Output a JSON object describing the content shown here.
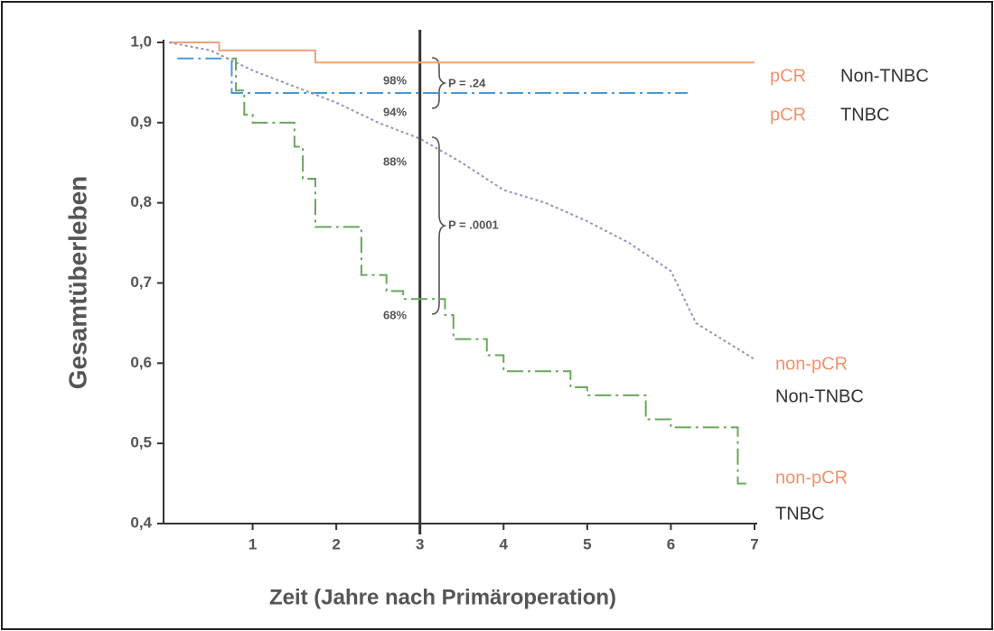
{
  "chart_data": {
    "type": "line",
    "step": true,
    "xlabel": "Zeit (Jahre nach Primäroperation)",
    "ylabel": "Gesamtüberleben",
    "xlim": [
      0,
      7
    ],
    "ylim": [
      0.4,
      1.0
    ],
    "xticks": [
      1,
      2,
      3,
      4,
      5,
      6,
      7
    ],
    "yticks": [
      {
        "value": 0.4,
        "label": "0,4"
      },
      {
        "value": 0.5,
        "label": "0,5"
      },
      {
        "value": 0.6,
        "label": "0,6"
      },
      {
        "value": 0.7,
        "label": "0,7"
      },
      {
        "value": 0.8,
        "label": "0,8"
      },
      {
        "value": 0.9,
        "label": "0,9"
      },
      {
        "value": 1.0,
        "label": "1,0"
      }
    ],
    "vline": 3,
    "legend_group_color": "#f4916a",
    "series": [
      {
        "group": "pCR",
        "name": "Non-TNBC",
        "color": "#f4a07a",
        "dash": "solid",
        "step": true,
        "x": [
          0,
          0.6,
          1.75,
          7
        ],
        "values": [
          1.0,
          0.99,
          0.975,
          0.975
        ]
      },
      {
        "group": "pCR",
        "name": "TNBC",
        "color": "#4a9ad8",
        "dash": "dashdot",
        "step": true,
        "x": [
          0.1,
          0.75,
          6.2
        ],
        "values": [
          0.98,
          0.937,
          0.937
        ]
      },
      {
        "group": "non-pCR",
        "name": "Non-TNBC",
        "color": "#9296b8",
        "dash": "dotted",
        "step": false,
        "x": [
          0,
          0.5,
          1,
          1.5,
          2,
          2.5,
          3,
          3.5,
          4,
          4.5,
          5,
          5.5,
          6,
          6.3,
          7
        ],
        "values": [
          1.0,
          0.99,
          0.965,
          0.945,
          0.925,
          0.9,
          0.88,
          0.85,
          0.816,
          0.8,
          0.777,
          0.75,
          0.715,
          0.65,
          0.605
        ]
      },
      {
        "group": "non-pCR",
        "name": "TNBC",
        "color": "#6aa85a",
        "dash": "dashdot",
        "step": true,
        "x": [
          0.75,
          0.8,
          0.9,
          1.0,
          1.5,
          1.6,
          1.75,
          2.3,
          2.6,
          2.8,
          3.3,
          3.4,
          3.8,
          4.0,
          4.8,
          5.0,
          5.7,
          6.0,
          6.8,
          6.9
        ],
        "values": [
          0.98,
          0.94,
          0.91,
          0.9,
          0.87,
          0.83,
          0.77,
          0.71,
          0.69,
          0.68,
          0.66,
          0.63,
          0.61,
          0.59,
          0.57,
          0.56,
          0.53,
          0.52,
          0.45,
          0.45
        ]
      }
    ],
    "annotations": [
      "98%",
      "94%",
      "88%",
      "68%",
      "P = .24",
      "P = .0001"
    ]
  }
}
